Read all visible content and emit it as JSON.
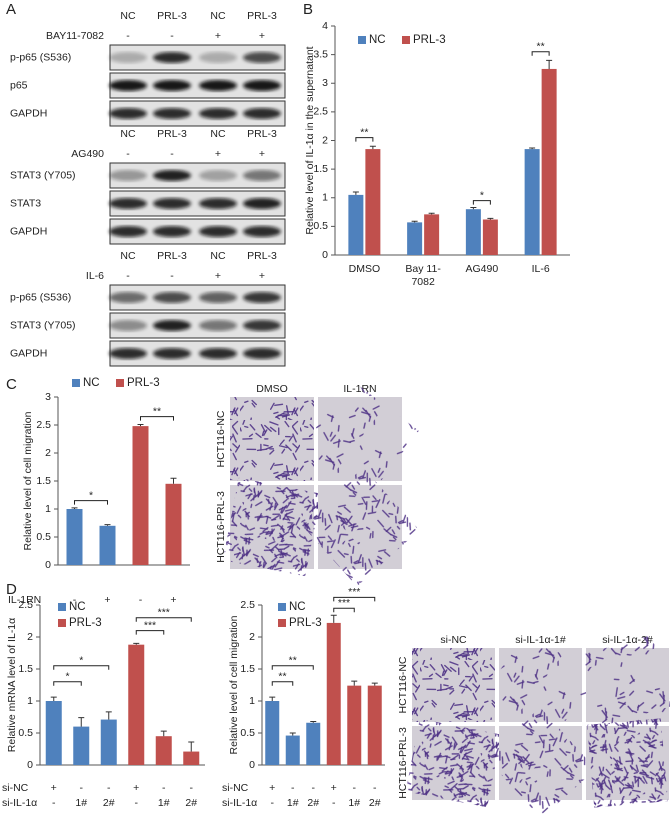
{
  "panel_labels": [
    "A",
    "B",
    "C",
    "D"
  ],
  "blots": [
    {
      "groups": [
        "NC",
        "PRL-3",
        "NC",
        "PRL-3"
      ],
      "treatment": "BAY11-7082",
      "treatment_signs": [
        "-",
        "-",
        "+",
        "+"
      ],
      "rows": [
        "p-p65 (S536)",
        "p65",
        "GAPDH"
      ]
    },
    {
      "groups": [
        "NC",
        "PRL-3",
        "NC",
        "PRL-3"
      ],
      "treatment": "AG490",
      "treatment_signs": [
        "-",
        "-",
        "+",
        "+"
      ],
      "rows": [
        "STAT3 (Y705)",
        "STAT3",
        "GAPDH"
      ]
    },
    {
      "groups": [
        "NC",
        "PRL-3",
        "NC",
        "PRL-3"
      ],
      "treatment": "IL-6",
      "treatment_signs": [
        "-",
        "-",
        "+",
        "+"
      ],
      "rows": [
        "p-p65 (S536)",
        "STAT3 (Y705)",
        "GAPDH"
      ]
    }
  ],
  "micrographs": [
    {
      "columns": [
        "DMSO",
        "IL-1RN"
      ],
      "rows": [
        "HCT116-NC",
        "HCT116-PRL-3"
      ]
    },
    {
      "columns": [
        "si-NC",
        "si-IL-1α-1#",
        "si-IL-1α-2#"
      ],
      "rows": [
        "HCT116-NC",
        "HCT116-PRL-3"
      ]
    }
  ],
  "chart_data": [
    {
      "type": "bar",
      "y_label": "Relative level of IL-1α  in the supernatant",
      "categories": [
        "DMSO",
        "Bay 11-7082",
        "AG490",
        "IL-6"
      ],
      "series": [
        {
          "name": "NC",
          "color": "#4f81bd",
          "values": [
            1.05,
            0.57,
            0.8,
            1.85
          ],
          "errors": [
            0.05,
            0.02,
            0.03,
            0.02
          ]
        },
        {
          "name": "PRL-3",
          "color": "#c0504d",
          "values": [
            1.85,
            0.71,
            0.62,
            3.25
          ],
          "errors": [
            0.05,
            0.02,
            0.02,
            0.15
          ]
        }
      ],
      "ylim": [
        0,
        4
      ],
      "yticks": [
        0,
        0.5,
        1,
        1.5,
        2,
        2.5,
        3,
        3.5,
        4
      ],
      "annotations": [
        "**",
        "*",
        "**"
      ]
    },
    {
      "type": "bar",
      "y_label": "Relative level of cell migration",
      "category_rows": [
        {
          "label": "IL-1RN",
          "values": [
            "-",
            "+",
            "-",
            "+"
          ]
        }
      ],
      "series": [
        {
          "name": "NC",
          "color": "#4f81bd",
          "values": [
            1.0,
            0.7,
            null,
            null
          ],
          "errors": [
            0.02,
            0.02,
            null,
            null
          ]
        },
        {
          "name": "PRL-3",
          "color": "#c0504d",
          "values": [
            null,
            null,
            2.48,
            1.45
          ],
          "errors": [
            null,
            null,
            0.03,
            0.1
          ]
        }
      ],
      "ylim": [
        0,
        3
      ],
      "yticks": [
        0,
        0.5,
        1,
        1.5,
        2,
        2.5,
        3
      ],
      "annotations": [
        "*",
        "**"
      ]
    },
    {
      "type": "bar",
      "y_label": "Relative mRNA level of IL-1α",
      "category_rows": [
        {
          "label": "si-NC",
          "values": [
            "+",
            "-",
            "-",
            "+",
            "-",
            "-"
          ]
        },
        {
          "label": "si-IL-1α",
          "values": [
            "-",
            "1#",
            "2#",
            "-",
            "1#",
            "2#"
          ]
        }
      ],
      "series": [
        {
          "name": "NC",
          "color": "#4f81bd",
          "values": [
            1.0,
            0.6,
            0.71,
            null,
            null,
            null
          ],
          "errors": [
            0.06,
            0.14,
            0.12,
            null,
            null,
            null
          ]
        },
        {
          "name": "PRL-3",
          "color": "#c0504d",
          "values": [
            null,
            null,
            null,
            1.88,
            0.45,
            0.21
          ],
          "errors": [
            null,
            null,
            null,
            0.02,
            0.08,
            0.15
          ]
        }
      ],
      "ylim": [
        0,
        2.5
      ],
      "yticks": [
        0,
        0.5,
        1,
        1.5,
        2,
        2.5
      ],
      "annotations": [
        "*",
        "*",
        "***",
        "***"
      ]
    },
    {
      "type": "bar",
      "y_label": "Relative level of cell migration",
      "category_rows": [
        {
          "label": "si-NC",
          "values": [
            "+",
            "-",
            "-",
            "+",
            "-",
            "-"
          ]
        },
        {
          "label": "si-IL-1α",
          "values": [
            "-",
            "1#",
            "2#",
            "-",
            "1#",
            "2#"
          ]
        }
      ],
      "series": [
        {
          "name": "NC",
          "color": "#4f81bd",
          "values": [
            1.0,
            0.46,
            0.66,
            null,
            null,
            null
          ],
          "errors": [
            0.06,
            0.04,
            0.02,
            null,
            null,
            null
          ]
        },
        {
          "name": "PRL-3",
          "color": "#c0504d",
          "values": [
            null,
            null,
            null,
            2.22,
            1.24,
            1.24
          ],
          "errors": [
            null,
            null,
            null,
            0.12,
            0.07,
            0.04
          ]
        }
      ],
      "ylim": [
        0,
        2.5
      ],
      "yticks": [
        0,
        0.5,
        1,
        1.5,
        2,
        2.5
      ],
      "annotations": [
        "**",
        "**",
        "***",
        "***"
      ]
    }
  ]
}
